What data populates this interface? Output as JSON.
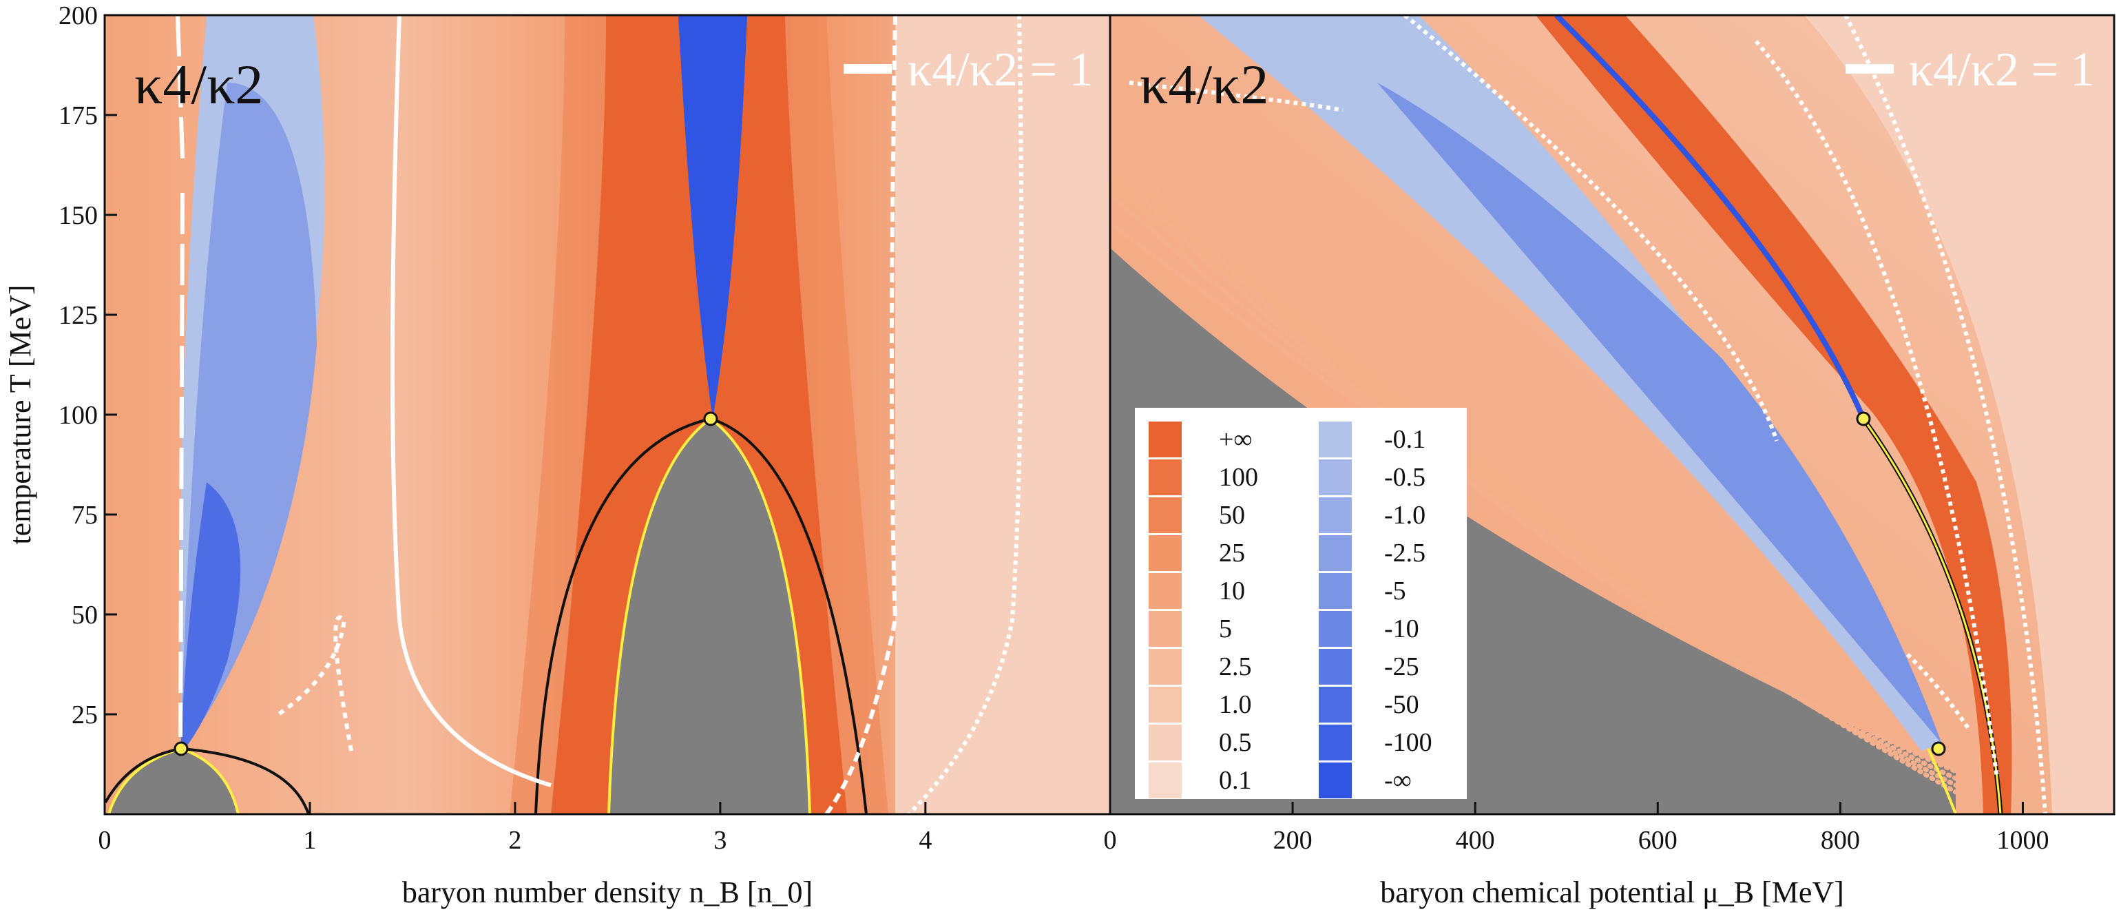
{
  "chart_data": [
    {
      "type": "heatmap",
      "panel": "left",
      "title": "κ4/κ2",
      "legend": {
        "label": "κ4/κ2 = 1",
        "placement": "top-right",
        "line_color": "#ffffff"
      },
      "xlabel": "baryon number density n_B [n_0]",
      "ylabel": "temperature T [MeV]",
      "xlim": [
        0,
        4.9
      ],
      "ylim": [
        0,
        200
      ],
      "xticks": [
        "0",
        "1",
        "2",
        "3",
        "4"
      ],
      "yticks": [
        "25",
        "50",
        "75",
        "100",
        "125",
        "150",
        "175",
        "200"
      ],
      "critical_points": [
        {
          "x": 0.37,
          "T": 18
        },
        {
          "x": 3.0,
          "T": 100
        }
      ],
      "regions": [
        {
          "name": "spinodal-region-1",
          "color": "gray",
          "x_range": [
            0.05,
            0.65
          ],
          "T_max": 18
        },
        {
          "name": "spinodal-region-2",
          "color": "gray",
          "x_range": [
            2.5,
            3.3
          ],
          "T_max": 100
        }
      ]
    },
    {
      "type": "heatmap",
      "panel": "right",
      "title": "κ4/κ2",
      "legend": {
        "label": "κ4/κ2 = 1",
        "placement": "top-right",
        "line_color": "#ffffff"
      },
      "xlabel": "baryon chemical potential μ_B [MeV]",
      "ylabel": "",
      "xlim": [
        0,
        1100
      ],
      "ylim": [
        0,
        200
      ],
      "xticks": [
        "0",
        "200",
        "400",
        "600",
        "800",
        "1000"
      ],
      "critical_points": [
        {
          "x": 820,
          "T": 100
        },
        {
          "x": 903,
          "T": 18
        }
      ]
    }
  ],
  "colorbar": {
    "positive": {
      "labels": [
        "+∞",
        "100",
        "50",
        "25",
        "10",
        "5",
        "2.5",
        "1.0",
        "0.5",
        "0.1"
      ],
      "colors": [
        "#e8632f",
        "#ec7442",
        "#ef8555",
        "#f19667",
        "#f3a47a",
        "#f4b08c",
        "#f5bb9d",
        "#f6c6ad",
        "#f7d0bd",
        "#f8dacc"
      ]
    },
    "negative": {
      "labels": [
        "-0.1",
        "-0.5",
        "-1.0",
        "-2.5",
        "-5",
        "-10",
        "-25",
        "-50",
        "-100",
        "-∞"
      ],
      "colors": [
        "#b2c3ea",
        "#a5b8e9",
        "#97ace8",
        "#89a0e7",
        "#7a94e6",
        "#6b87e5",
        "#5c7ae5",
        "#4d6de4",
        "#3e61e3",
        "#2f55e2"
      ]
    }
  }
}
